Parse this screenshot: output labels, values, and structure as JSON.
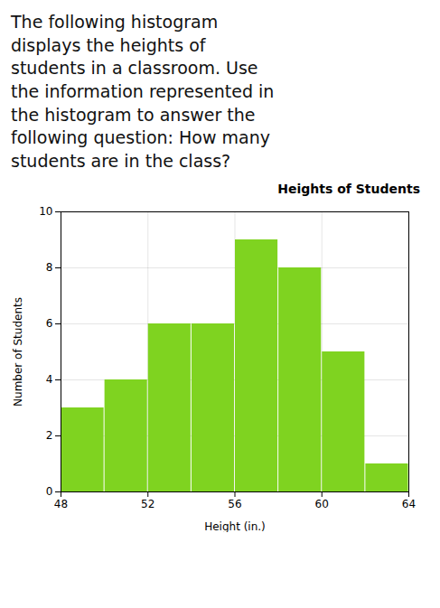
{
  "chart_data": {
    "type": "histogram",
    "title": "Heights of Students",
    "subtitle": "The following histogram\ndisplays the heights of\nstudents in a classroom. Use\nthe information represented in\nthe histogram to answer the\nfollowing question: How many\nstudents are in the class?",
    "xlabel": "Height (in.)",
    "ylabel": "Number of Students",
    "bins": [
      48,
      50,
      52,
      54,
      56,
      58,
      60,
      62,
      64
    ],
    "values": [
      3,
      4,
      6,
      6,
      9,
      8,
      5,
      1
    ],
    "color": "#7FD320",
    "xlim": [
      48,
      64
    ],
    "xticks": [
      48,
      52,
      56,
      60,
      64
    ],
    "ylim": [
      0,
      10
    ],
    "yticks": [
      0,
      2,
      4,
      6,
      8,
      10
    ],
    "grid": true
  }
}
